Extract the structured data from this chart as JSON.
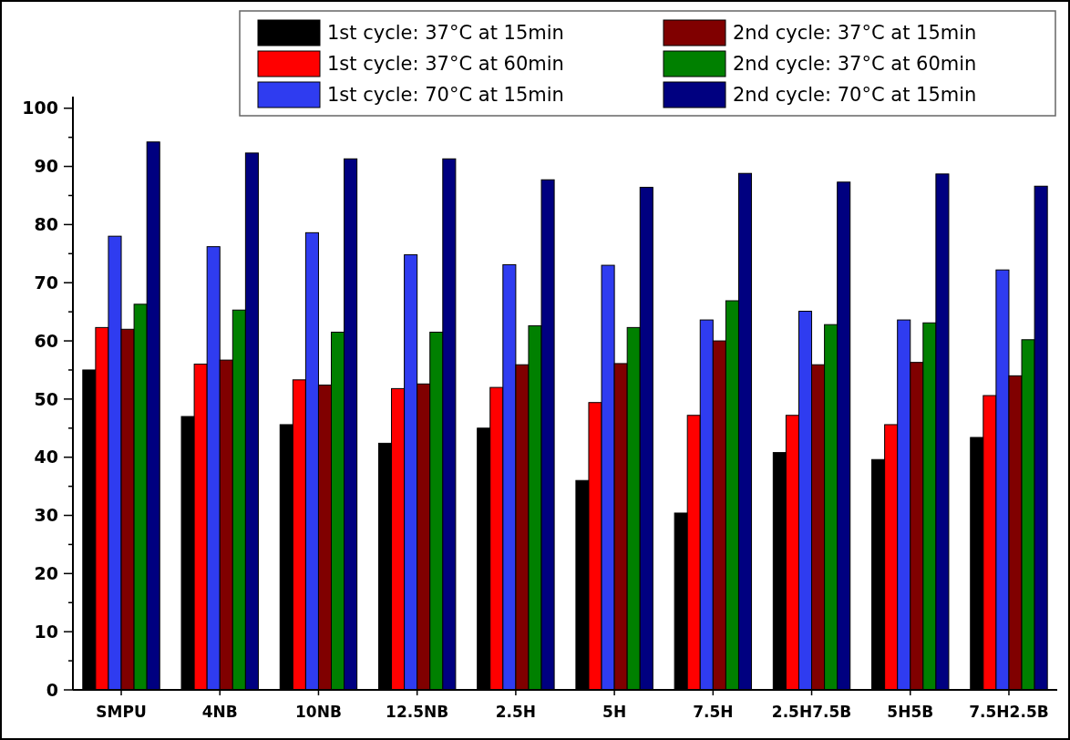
{
  "chart_data": {
    "type": "bar",
    "categories": [
      "SMPU",
      "4NB",
      "10NB",
      "12.5NB",
      "2.5H",
      "5H",
      "7.5H",
      "2.5H7.5B",
      "5H5B",
      "7.5H2.5B"
    ],
    "series": [
      {
        "name": "1st cycle: 37°C at 15min",
        "color": "#000000",
        "values": [
          55,
          47,
          45.6,
          42.4,
          45,
          36,
          30.4,
          40.8,
          39.6,
          43.4
        ]
      },
      {
        "name": "1st cycle: 37°C at 60min",
        "color": "#ff0000",
        "values": [
          62.3,
          56,
          53.3,
          51.8,
          52,
          49.4,
          47.2,
          47.2,
          45.6,
          50.6
        ]
      },
      {
        "name": "1st cycle: 70°C at 15min",
        "color": "#2f3cf0",
        "values": [
          78,
          76.2,
          78.6,
          74.8,
          73.1,
          73,
          63.6,
          65.1,
          63.6,
          72.2
        ]
      },
      {
        "name": "2nd cycle: 37°C at 15min",
        "color": "#800000",
        "values": [
          62,
          56.7,
          52.4,
          52.6,
          55.9,
          56.1,
          60,
          55.9,
          56.3,
          54
        ]
      },
      {
        "name": "2nd cycle: 37°C at 60min",
        "color": "#008000",
        "values": [
          66.3,
          65.3,
          61.5,
          61.5,
          62.6,
          62.3,
          66.9,
          62.8,
          63.1,
          60.2
        ]
      },
      {
        "name": "2nd cycle: 70°C at 15min",
        "color": "#000080",
        "values": [
          94.2,
          92.3,
          91.3,
          91.3,
          87.7,
          86.4,
          88.8,
          87.3,
          88.7,
          86.6
        ]
      }
    ],
    "ylim": [
      0,
      102
    ],
    "yticks": [
      0,
      {
        "value": 5,
        "label": null
      },
      10,
      {
        "value": 15,
        "label": null
      },
      20,
      {
        "value": 25,
        "label": null
      },
      30,
      {
        "value": 35,
        "label": null
      },
      40,
      {
        "value": 45,
        "label": null
      },
      50,
      {
        "value": 55,
        "label": null
      },
      60,
      {
        "value": 65,
        "label": null
      },
      70,
      {
        "value": 75,
        "label": null
      },
      80,
      {
        "value": 85,
        "label": null
      },
      90,
      {
        "value": 95,
        "label": null
      },
      100
    ],
    "legend": "top right",
    "grid": false
  }
}
